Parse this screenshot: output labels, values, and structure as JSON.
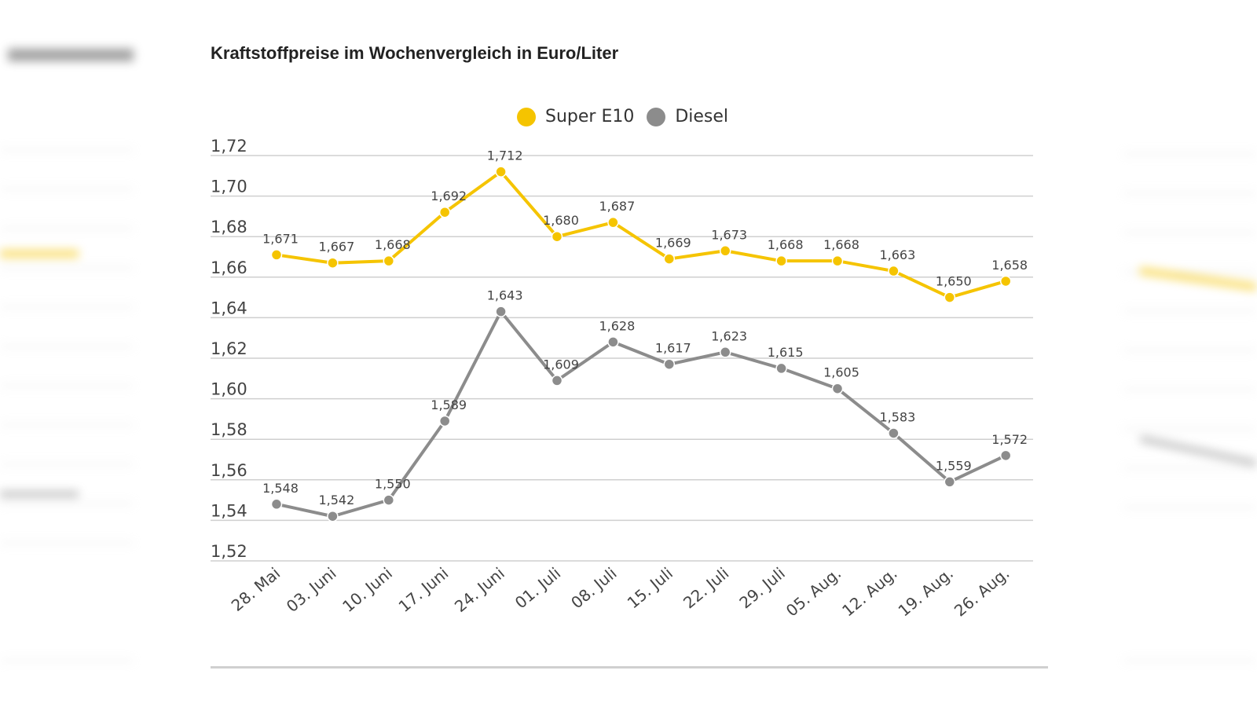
{
  "header": {
    "title": "Kraftstoffpreise im Wochenvergleich in Euro/Liter"
  },
  "chart_data": {
    "type": "line",
    "title": "Kraftstoffpreise im Wochenvergleich in Euro/Liter",
    "xlabel": "",
    "ylabel": "",
    "categories": [
      "28. Mai",
      "03. Juni",
      "10. Juni",
      "17. Juni",
      "24. Juni",
      "01. Juli",
      "08. Juli",
      "15. Juli",
      "22. Juli",
      "29. Juli",
      "05. Aug.",
      "12. Aug.",
      "19. Aug.",
      "26. Aug."
    ],
    "ylim": [
      1.52,
      1.72
    ],
    "yticks": [
      "1,72",
      "1,70",
      "1,68",
      "1,66",
      "1,64",
      "1,62",
      "1,60",
      "1,58",
      "1,56",
      "1,54",
      "1,52"
    ],
    "grid": true,
    "legend_position": "top-center",
    "series": [
      {
        "name": "Super E10",
        "color": "#f5c400",
        "values": [
          1.671,
          1.667,
          1.668,
          1.692,
          1.712,
          1.68,
          1.687,
          1.669,
          1.673,
          1.668,
          1.668,
          1.663,
          1.65,
          1.658
        ],
        "labels": [
          "1,671",
          "1,667",
          "1,668",
          "1,692",
          "1,712",
          "1,680",
          "1,687",
          "1,669",
          "1,673",
          "1,668",
          "1,668",
          "1,663",
          "1,650",
          "1,658"
        ]
      },
      {
        "name": "Diesel",
        "color": "#8c8c8c",
        "values": [
          1.548,
          1.542,
          1.55,
          1.589,
          1.643,
          1.609,
          1.628,
          1.617,
          1.623,
          1.615,
          1.605,
          1.583,
          1.559,
          1.572
        ],
        "labels": [
          "1,548",
          "1,542",
          "1,550",
          "1,589",
          "1,643",
          "1,609",
          "1,628",
          "1,617",
          "1,623",
          "1,615",
          "1,605",
          "1,583",
          "1,559",
          "1,572"
        ]
      }
    ]
  },
  "colors": {
    "gridline": "#cfcfcf",
    "axis_text": "#444444",
    "label_text": "#444444"
  }
}
